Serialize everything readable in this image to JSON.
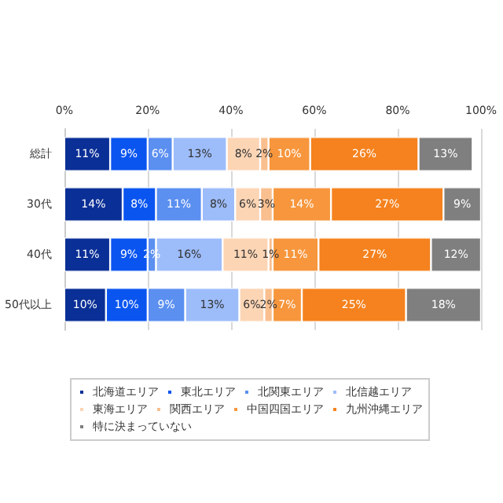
{
  "chart_data": {
    "type": "bar",
    "orientation": "horizontal",
    "stacked": true,
    "categories": [
      "総計",
      "30代",
      "40代",
      "50代以上"
    ],
    "series": [
      {
        "name": "北海道エリア",
        "color": "#0a2f96",
        "values": [
          11,
          14,
          11,
          10
        ],
        "value_labels": [
          "11%",
          "14%",
          "11%",
          "10%"
        ]
      },
      {
        "name": "東北エリア",
        "color": "#0a55f0",
        "values": [
          9,
          8,
          9,
          10
        ],
        "value_labels": [
          "9%",
          "8%",
          "9%",
          "10%"
        ]
      },
      {
        "name": "北関東エリア",
        "color": "#5b8ff0",
        "values": [
          6,
          11,
          2,
          9
        ],
        "value_labels": [
          "6%",
          "11%",
          "2%",
          "9%"
        ]
      },
      {
        "name": "北信越エリア",
        "color": "#9dbcfa",
        "values": [
          13,
          8,
          16,
          13
        ],
        "value_labels": [
          "13%",
          "8%",
          "16%",
          "13%"
        ]
      },
      {
        "name": "東海エリア",
        "color": "#fcd5b5",
        "values": [
          8,
          6,
          11,
          6
        ],
        "value_labels": [
          "8%",
          "6%",
          "11%",
          "6%"
        ]
      },
      {
        "name": "関西エリア",
        "color": "#fabf8f",
        "values": [
          2,
          3,
          1,
          2
        ],
        "value_labels": [
          "2%",
          "3%",
          "1%",
          "2%"
        ]
      },
      {
        "name": "中国四国エリア",
        "color": "#f7963c",
        "values": [
          10,
          14,
          11,
          7
        ],
        "value_labels": [
          "10%",
          "14%",
          "11%",
          "7%"
        ]
      },
      {
        "name": "九州沖縄エリア",
        "color": "#f5821e",
        "values": [
          26,
          27,
          27,
          25
        ],
        "value_labels": [
          "26%",
          "27%",
          "27%",
          "25%"
        ]
      },
      {
        "name": "特に決まっていない",
        "color": "#7f7f7f",
        "values": [
          13,
          9,
          12,
          18
        ],
        "value_labels": [
          "13%",
          "9%",
          "12%",
          "18%"
        ]
      }
    ],
    "xlim": [
      0,
      100
    ],
    "xticks": [
      {
        "value": 0,
        "label": "0%"
      },
      {
        "value": 20,
        "label": "20%"
      },
      {
        "value": 40,
        "label": "40%"
      },
      {
        "value": 60,
        "label": "60%"
      },
      {
        "value": 80,
        "label": "80%"
      },
      {
        "value": 100,
        "label": "100%"
      }
    ],
    "grid": "x",
    "legend": "bottom"
  }
}
